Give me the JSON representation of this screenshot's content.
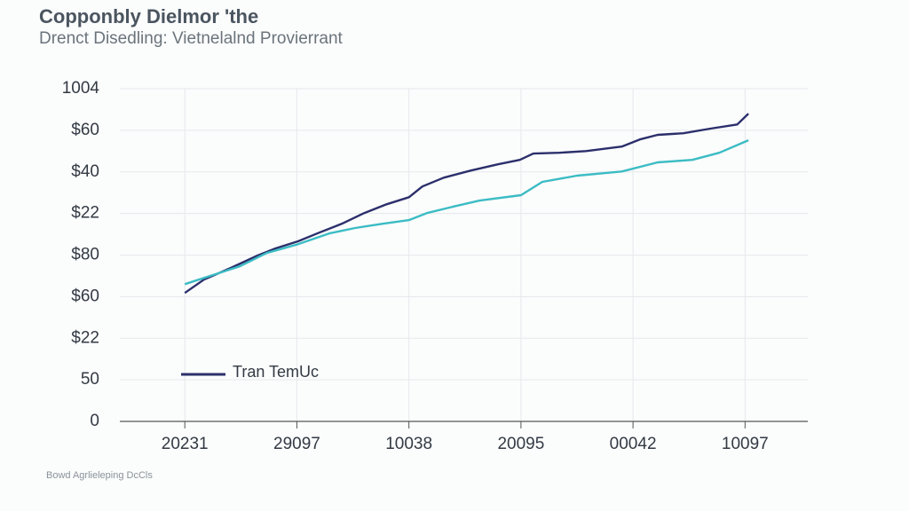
{
  "chart_data": {
    "type": "line",
    "title": "Copponbly Dielmor 'the",
    "subtitle": "Drenct Disedling: Vietnelalnd Provierrant",
    "source": "Bowd Agrlieleping DcCls",
    "xlim": [
      -0.58,
      5.56
    ],
    "xticks": [
      {
        "value": 0,
        "label": "20231"
      },
      {
        "value": 1,
        "label": "29097"
      },
      {
        "value": 2,
        "label": "10038"
      },
      {
        "value": 3,
        "label": "20095"
      },
      {
        "value": 4,
        "label": "00042"
      },
      {
        "value": 5,
        "label": "10097"
      }
    ],
    "ylim": [
      0,
      8
    ],
    "yticks": [
      0,
      {
        "value": 1,
        "label": "50"
      },
      {
        "value": 2,
        "label": "$22"
      },
      {
        "value": 3,
        "label": "$60"
      },
      {
        "value": 4,
        "label": "$80"
      },
      {
        "value": 5,
        "label": "$22"
      },
      {
        "value": 6,
        "label": "$40"
      },
      {
        "value": 7,
        "label": "$60"
      },
      {
        "value": 8,
        "label": "1004"
      }
    ],
    "grid": true,
    "legend": "lower-left",
    "series": [
      {
        "name": "Tran TemUc",
        "color": "#2b2f6b",
        "x": [
          0,
          0.17,
          0.41,
          0.65,
          0.81,
          1.01,
          1.2,
          1.4,
          1.6,
          1.8,
          2.0,
          2.12,
          2.31,
          2.55,
          2.79,
          2.99,
          3.11,
          3.34,
          3.58,
          3.9,
          4.06,
          4.22,
          4.45,
          4.69,
          4.93,
          5.03
        ],
        "values": [
          3.09,
          3.41,
          3.69,
          3.99,
          4.16,
          4.33,
          4.54,
          4.75,
          5.01,
          5.22,
          5.39,
          5.65,
          5.86,
          6.03,
          6.18,
          6.29,
          6.44,
          6.46,
          6.5,
          6.61,
          6.78,
          6.89,
          6.93,
          7.04,
          7.14,
          7.4
        ]
      },
      {
        "color": "#3bbcc4",
        "x": [
          0,
          0.25,
          0.49,
          0.73,
          1.01,
          1.29,
          1.52,
          1.76,
          2.0,
          2.16,
          2.39,
          2.63,
          3.0,
          3.19,
          3.5,
          3.9,
          4.22,
          4.53,
          4.77,
          5.03
        ],
        "values": [
          3.3,
          3.52,
          3.73,
          4.05,
          4.26,
          4.52,
          4.65,
          4.75,
          4.84,
          5.01,
          5.16,
          5.31,
          5.44,
          5.76,
          5.91,
          6.01,
          6.23,
          6.29,
          6.46,
          6.76
        ]
      }
    ]
  }
}
